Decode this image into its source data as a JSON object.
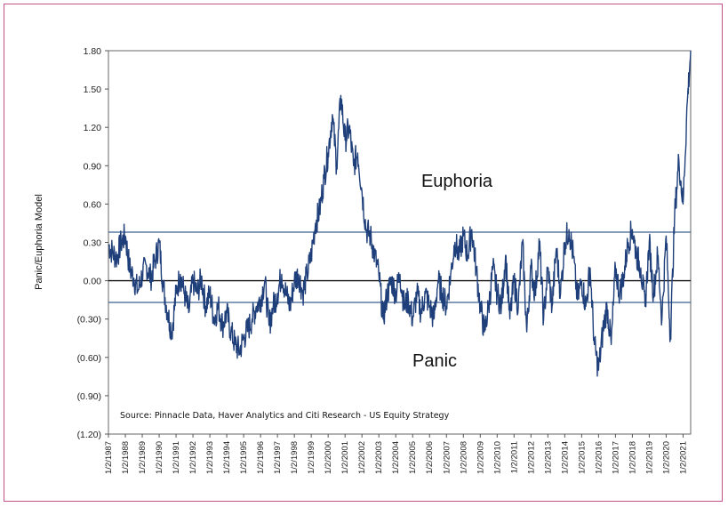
{
  "chart_data": {
    "type": "line",
    "title": "",
    "ylabel": "Panic/Euphoria Model",
    "ylim": [
      -1.2,
      1.8
    ],
    "xlim": [
      "1987-01-02",
      "2021-06-01"
    ],
    "y_ticks": [
      1.8,
      1.5,
      1.2,
      0.9,
      0.6,
      0.3,
      0.0,
      -0.3,
      -0.6,
      -0.9,
      -1.2
    ],
    "y_tick_labels": [
      "1.80",
      "1.50",
      "1.20",
      "0.90",
      "0.60",
      "0.30",
      "0.00",
      "(0.30)",
      "(0.60)",
      "(0.90)",
      "(1.20)"
    ],
    "x_tick_labels": [
      "1/2/1987",
      "1/2/1988",
      "1/2/1989",
      "1/2/1990",
      "1/2/1991",
      "1/2/1992",
      "1/2/1993",
      "1/2/1994",
      "1/2/1995",
      "1/2/1996",
      "1/2/1997",
      "1/2/1998",
      "1/2/1999",
      "1/2/2000",
      "1/2/2001",
      "1/2/2002",
      "1/2/2003",
      "1/2/2004",
      "1/2/2005",
      "1/2/2006",
      "1/2/2007",
      "1/2/2008",
      "1/2/2009",
      "1/2/2010",
      "1/2/2011",
      "1/2/2012",
      "1/2/2013",
      "1/2/2014",
      "1/2/2015",
      "1/2/2016",
      "1/2/2017",
      "1/2/2018",
      "1/2/2019",
      "1/2/2020",
      "1/2/2021"
    ],
    "reference_lines": [
      {
        "y": 0.38,
        "label": "Euphoria"
      },
      {
        "y": 0.0
      },
      {
        "y": -0.17,
        "label": "Panic"
      }
    ],
    "annotations": {
      "euphoria": "Euphoria",
      "panic": "Panic",
      "source": "Source:  Pinnacle Data, Haver Analytics and Citi Research - US Equity Strategy"
    },
    "grid": false,
    "legend": "none",
    "series": [
      {
        "color": "#1f3f7a",
        "x": [
          1987.0,
          1987.25,
          1987.5,
          1987.75,
          1988.0,
          1988.25,
          1988.5,
          1988.75,
          1989.0,
          1989.25,
          1989.5,
          1989.75,
          1990.0,
          1990.25,
          1990.5,
          1990.75,
          1991.0,
          1991.25,
          1991.5,
          1991.75,
          1992.0,
          1992.25,
          1992.5,
          1992.75,
          1993.0,
          1993.25,
          1993.5,
          1993.75,
          1994.0,
          1994.25,
          1994.5,
          1994.75,
          1995.0,
          1995.25,
          1995.5,
          1995.75,
          1996.0,
          1996.25,
          1996.5,
          1996.75,
          1997.0,
          1997.25,
          1997.5,
          1997.75,
          1998.0,
          1998.25,
          1998.5,
          1998.75,
          1999.0,
          1999.25,
          1999.5,
          1999.75,
          2000.0,
          2000.25,
          2000.5,
          2000.75,
          2001.0,
          2001.25,
          2001.5,
          2001.75,
          2002.0,
          2002.25,
          2002.5,
          2002.75,
          2003.0,
          2003.25,
          2003.5,
          2003.75,
          2004.0,
          2004.25,
          2004.5,
          2004.75,
          2005.0,
          2005.25,
          2005.5,
          2005.75,
          2006.0,
          2006.25,
          2006.5,
          2006.75,
          2007.0,
          2007.25,
          2007.5,
          2007.75,
          2008.0,
          2008.25,
          2008.5,
          2008.75,
          2009.0,
          2009.25,
          2009.5,
          2009.75,
          2010.0,
          2010.25,
          2010.5,
          2010.75,
          2011.0,
          2011.25,
          2011.5,
          2011.75,
          2012.0,
          2012.25,
          2012.5,
          2012.75,
          2013.0,
          2013.25,
          2013.5,
          2013.75,
          2014.0,
          2014.25,
          2014.5,
          2014.75,
          2015.0,
          2015.25,
          2015.5,
          2015.75,
          2016.0,
          2016.25,
          2016.5,
          2016.75,
          2017.0,
          2017.25,
          2017.5,
          2017.75,
          2018.0,
          2018.25,
          2018.5,
          2018.75,
          2019.0,
          2019.25,
          2019.5,
          2019.75,
          2020.0,
          2020.25,
          2020.5,
          2020.75,
          2021.0,
          2021.25,
          2021.45
        ],
        "y": [
          0.28,
          0.22,
          0.18,
          0.3,
          0.35,
          0.1,
          0.02,
          -0.08,
          0.05,
          0.12,
          0.02,
          0.15,
          0.3,
          -0.05,
          -0.25,
          -0.4,
          -0.1,
          0.05,
          -0.1,
          -0.25,
          0.0,
          -0.1,
          0.02,
          -0.2,
          -0.1,
          -0.3,
          -0.2,
          -0.35,
          -0.25,
          -0.4,
          -0.5,
          -0.55,
          -0.45,
          -0.38,
          -0.3,
          -0.2,
          -0.15,
          0.0,
          -0.35,
          -0.2,
          -0.1,
          0.05,
          -0.1,
          -0.2,
          0.0,
          0.05,
          -0.1,
          0.05,
          0.2,
          0.45,
          0.55,
          0.8,
          1.0,
          1.3,
          0.9,
          1.45,
          1.1,
          1.2,
          0.9,
          1.0,
          0.7,
          0.4,
          0.35,
          0.2,
          0.05,
          -0.3,
          -0.1,
          0.0,
          -0.1,
          0.05,
          -0.2,
          -0.15,
          -0.3,
          -0.1,
          -0.25,
          -0.1,
          -0.2,
          -0.3,
          0.0,
          -0.1,
          -0.2,
          0.05,
          0.3,
          0.2,
          0.35,
          0.2,
          0.4,
          0.1,
          -0.2,
          -0.4,
          -0.2,
          0.1,
          -0.1,
          -0.2,
          0.2,
          -0.3,
          0.0,
          -0.2,
          0.3,
          -0.4,
          0.1,
          -0.1,
          0.3,
          -0.3,
          0.1,
          -0.2,
          0.25,
          -0.1,
          0.3,
          0.4,
          0.2,
          -0.15,
          0.0,
          -0.2,
          0.1,
          -0.5,
          -0.7,
          -0.4,
          -0.2,
          -0.5,
          0.1,
          -0.1,
          0.05,
          0.3,
          0.4,
          0.2,
          0.1,
          -0.2,
          0.3,
          -0.1,
          0.2,
          -0.3,
          0.35,
          -0.45,
          0.5,
          0.95,
          0.6,
          1.4,
          1.8
        ]
      }
    ]
  }
}
